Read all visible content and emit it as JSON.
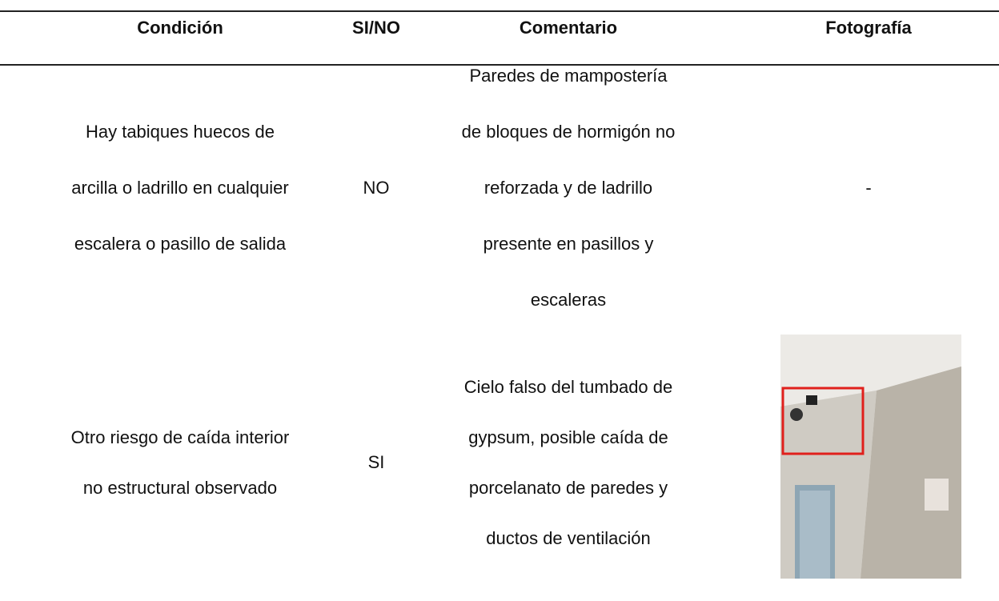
{
  "table": {
    "header": [
      "Condición",
      "SI/NO",
      "Comentario",
      "Fotografía"
    ],
    "rows": [
      {
        "condition": [
          "Hay tabiques huecos de",
          "arcilla o ladrillo en cualquier",
          "escalera o pasillo de salida"
        ],
        "answer": "NO",
        "comment": [
          "Paredes de mampostería",
          "de bloques de hormigón no",
          "reforzada y de ladrillo",
          "presente en pasillos y",
          "escaleras"
        ],
        "photo": "-"
      },
      {
        "condition": [
          "Otro riesgo de caída interior",
          "no estructural observado"
        ],
        "answer": "SI",
        "comment": [
          "Cielo falso del tumbado de",
          "gypsum, posible caída de",
          "porcelanato de paredes y",
          "ductos de ventilación"
        ]
      }
    ]
  }
}
